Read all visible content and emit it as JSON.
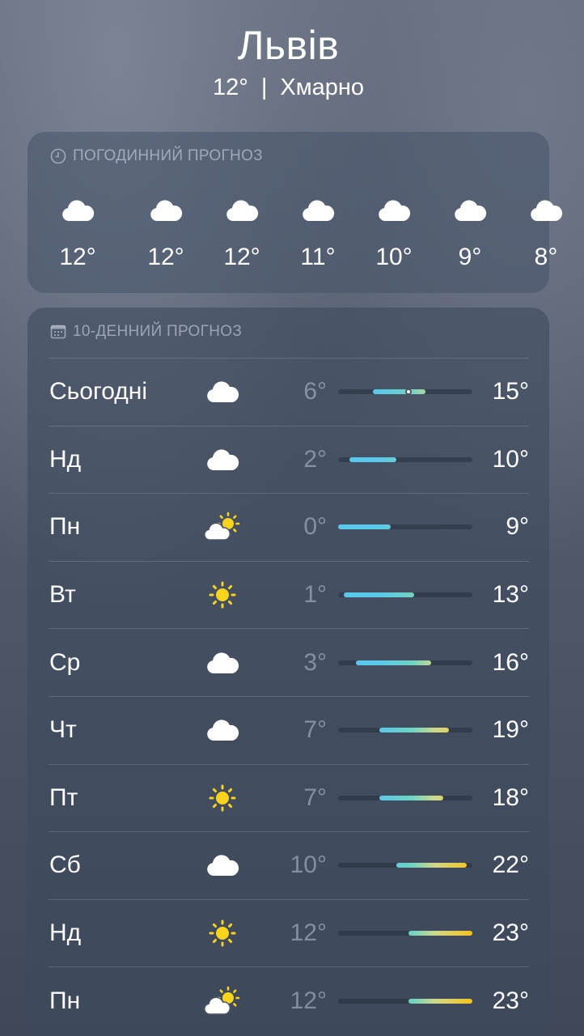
{
  "location": {
    "city": "Львів",
    "current_temp": "12°",
    "separator": "|",
    "condition": "Хмарно"
  },
  "hourly": {
    "title": "ПОГОДИННИЙ ПРОГНОЗ",
    "icon": "clock-icon",
    "items": [
      {
        "icon": "cloud",
        "temp": "12°"
      },
      {
        "icon": "cloud",
        "temp": "12°"
      },
      {
        "icon": "cloud",
        "temp": "12°"
      },
      {
        "icon": "cloud",
        "temp": "11°"
      },
      {
        "icon": "cloud",
        "temp": "10°"
      },
      {
        "icon": "cloud",
        "temp": "9°"
      },
      {
        "icon": "cloud",
        "temp": "8°"
      }
    ]
  },
  "daily": {
    "title": "10-ДЕННИЙ ПРОГНОЗ",
    "icon": "calendar-icon",
    "range_min": 0,
    "range_max": 23,
    "current_temp": 12,
    "days": [
      {
        "day": "Сьогодні",
        "icon": "cloud",
        "low": "6°",
        "high": "15°",
        "lo": 6,
        "hi": 15
      },
      {
        "day": "Нд",
        "icon": "cloud",
        "low": "2°",
        "high": "10°",
        "lo": 2,
        "hi": 10
      },
      {
        "day": "Пн",
        "icon": "partly-sunny",
        "low": "0°",
        "high": "9°",
        "lo": 0,
        "hi": 9
      },
      {
        "day": "Вт",
        "icon": "sun",
        "low": "1°",
        "high": "13°",
        "lo": 1,
        "hi": 13
      },
      {
        "day": "Ср",
        "icon": "cloud",
        "low": "3°",
        "high": "16°",
        "lo": 3,
        "hi": 16
      },
      {
        "day": "Чт",
        "icon": "cloud",
        "low": "7°",
        "high": "19°",
        "lo": 7,
        "hi": 19
      },
      {
        "day": "Пт",
        "icon": "sun",
        "low": "7°",
        "high": "18°",
        "lo": 7,
        "hi": 18
      },
      {
        "day": "Сб",
        "icon": "cloud",
        "low": "10°",
        "high": "22°",
        "lo": 10,
        "hi": 22
      },
      {
        "day": "Нд",
        "icon": "sun",
        "low": "12°",
        "high": "23°",
        "lo": 12,
        "hi": 23
      },
      {
        "day": "Пн",
        "icon": "partly-sunny",
        "low": "12°",
        "high": "23°",
        "lo": 12,
        "hi": 23
      }
    ]
  },
  "colors": {
    "cold": "#5ac8ea",
    "mild": "#6fd3c2",
    "warm": "#cfd98a",
    "hot": "#f7c21a",
    "sun": "#f9d31c"
  }
}
